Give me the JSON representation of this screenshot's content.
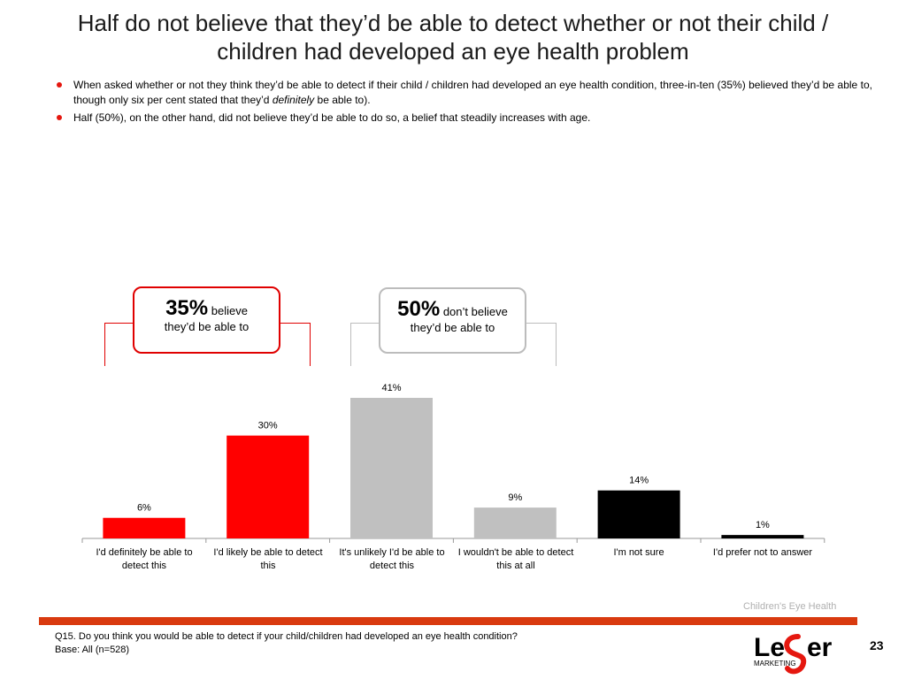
{
  "slide": {
    "title_line1": "Half do not believe that they’d be able to detect whether or not their child /",
    "title_line2": "children had developed an eye health problem",
    "bullet1_part1": "When asked whether or not they think they’d be able to detect if their child / children had developed an eye health condition, three-in-ten (35%) believed they’d be able to, though only six per cent stated that they’d ",
    "bullet1_emphasis": "definitely",
    "bullet1_part2": " be able to).",
    "bullet2": "Half (50%), on the other hand, did not believe they’d be able to do so, a belief that steadily increases with age."
  },
  "callouts": {
    "believe_pct": "35%",
    "believe_text1": "believe",
    "believe_text2": "they’d be able to",
    "dont_pct": "50%",
    "dont_text1": "don’t believe",
    "dont_text2": "they’d be able to"
  },
  "chart_data": {
    "type": "bar",
    "categories": [
      "I'd definitely be able to detect this",
      "I'd likely be able to detect this",
      "It's unlikely I'd be able to detect this",
      "I wouldn't be able to detect this at all",
      "I'm not sure",
      "I'd prefer not to answer"
    ],
    "values": [
      6,
      30,
      41,
      9,
      14,
      1
    ],
    "data_labels": [
      "6%",
      "30%",
      "41%",
      "9%",
      "14%",
      "1%"
    ],
    "colors": [
      "#ff0000",
      "#ff0000",
      "#c0c0c0",
      "#c0c0c0",
      "#000000",
      "#000000"
    ],
    "ylim": [
      0,
      45
    ],
    "grid": false,
    "legend": "none"
  },
  "footer": {
    "question": "Q15. Do you think you would be able to detect if your child/children had developed an eye health condition?",
    "base": "Base: All (n=528)",
    "section": "Children's Eye Health",
    "page_number": "23",
    "logo_word_start": "Le",
    "logo_word_end": "er",
    "logo_sub": "MARKETING"
  }
}
